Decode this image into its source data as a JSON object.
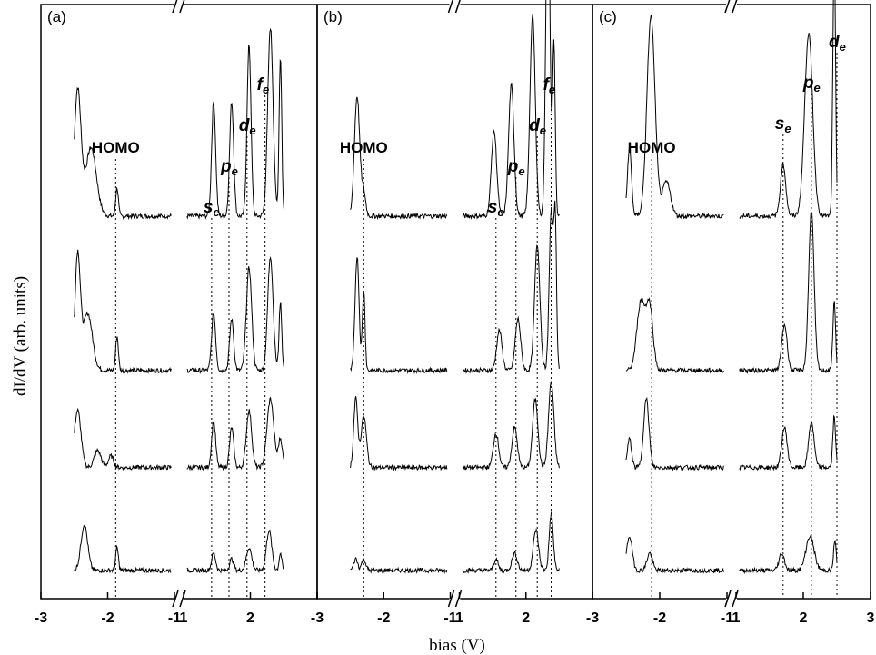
{
  "chart_data": {
    "type": "line",
    "ylabel": "dI/dV (arb. units)",
    "xlabel": "bias (V)",
    "x_axis": {
      "left_segment": {
        "range": [
          -3,
          -1
        ],
        "ticks": [
          -3,
          -2,
          -1
        ]
      },
      "right_segment": {
        "range": [
          1,
          3
        ],
        "ticks": [
          1,
          2,
          3
        ]
      },
      "broken_axis": true
    },
    "tick_labels": [
      "-3",
      "-2",
      "-1",
      "1",
      "2",
      "3"
    ],
    "panels": [
      {
        "label": "(a)",
        "homo_label": "HOMO",
        "homo_bias": -1.88,
        "levels": [
          {
            "name": "s",
            "sub": "e",
            "bias": 1.42
          },
          {
            "name": "p",
            "sub": "e",
            "bias": 1.68
          },
          {
            "name": "d",
            "sub": "e",
            "bias": 1.95
          },
          {
            "name": "f",
            "sub": "e",
            "bias": 2.22
          }
        ],
        "traces": [
          {
            "offset": 0.66,
            "neg_peaks": [
              [
                -2.45,
                0.22,
                0.05
              ],
              [
                -2.25,
                0.12,
                0.08
              ],
              [
                -1.86,
                0.05,
                0.02
              ]
            ],
            "pos_peaks": [
              [
                1.45,
                0.2,
                0.03
              ],
              [
                1.72,
                0.2,
                0.03
              ],
              [
                1.98,
                0.3,
                0.03
              ],
              [
                2.3,
                0.33,
                0.04
              ],
              [
                2.45,
                0.28,
                0.02
              ]
            ]
          },
          {
            "offset": 0.39,
            "neg_peaks": [
              [
                -2.45,
                0.2,
                0.04
              ],
              [
                -2.3,
                0.1,
                0.07
              ],
              [
                -1.86,
                0.06,
                0.02
              ]
            ],
            "pos_peaks": [
              [
                1.45,
                0.1,
                0.03
              ],
              [
                1.72,
                0.09,
                0.03
              ],
              [
                1.98,
                0.18,
                0.04
              ],
              [
                2.3,
                0.2,
                0.04
              ],
              [
                2.45,
                0.12,
                0.02
              ]
            ]
          },
          {
            "offset": 0.22,
            "neg_peaks": [
              [
                -2.45,
                0.1,
                0.05
              ],
              [
                -2.15,
                0.03,
                0.05
              ],
              [
                -1.95,
                0.02,
                0.04
              ]
            ],
            "pos_peaks": [
              [
                1.45,
                0.08,
                0.03
              ],
              [
                1.72,
                0.07,
                0.03
              ],
              [
                1.98,
                0.1,
                0.04
              ],
              [
                2.3,
                0.12,
                0.05
              ],
              [
                2.45,
                0.05,
                0.03
              ]
            ]
          },
          {
            "offset": 0.04,
            "neg_peaks": [
              [
                -2.35,
                0.08,
                0.05
              ],
              [
                -1.86,
                0.04,
                0.02
              ]
            ],
            "pos_peaks": [
              [
                1.45,
                0.03,
                0.03
              ],
              [
                1.72,
                0.02,
                0.03
              ],
              [
                1.98,
                0.04,
                0.04
              ],
              [
                2.28,
                0.07,
                0.04
              ],
              [
                2.45,
                0.03,
                0.02
              ]
            ]
          }
        ]
      },
      {
        "label": "(b)",
        "homo_label": "HOMO",
        "homo_bias": -2.3,
        "levels": [
          {
            "name": "s",
            "sub": "e",
            "bias": 1.55
          },
          {
            "name": "p",
            "sub": "e",
            "bias": 1.85
          },
          {
            "name": "d",
            "sub": "e",
            "bias": 2.17
          },
          {
            "name": "f",
            "sub": "e",
            "bias": 2.38
          }
        ],
        "traces": [
          {
            "offset": 0.66,
            "neg_peaks": [
              [
                -2.4,
                0.21,
                0.04
              ],
              [
                -2.3,
                0.04,
                0.03
              ]
            ],
            "pos_peaks": [
              [
                1.52,
                0.15,
                0.04
              ],
              [
                1.78,
                0.23,
                0.04
              ],
              [
                2.1,
                0.35,
                0.04
              ],
              [
                2.33,
                0.62,
                0.03
              ],
              [
                2.42,
                0.3,
                0.02
              ]
            ]
          },
          {
            "offset": 0.39,
            "neg_peaks": [
              [
                -2.4,
                0.2,
                0.03
              ],
              [
                -2.3,
                0.14,
                0.02
              ]
            ],
            "pos_peaks": [
              [
                1.6,
                0.07,
                0.04
              ],
              [
                1.88,
                0.09,
                0.04
              ],
              [
                2.17,
                0.22,
                0.04
              ],
              [
                2.38,
                0.28,
                0.03
              ],
              [
                2.44,
                0.25,
                0.02
              ]
            ]
          },
          {
            "offset": 0.22,
            "neg_peaks": [
              [
                -2.42,
                0.12,
                0.03
              ],
              [
                -2.3,
                0.09,
                0.04
              ]
            ],
            "pos_peaks": [
              [
                1.55,
                0.06,
                0.04
              ],
              [
                1.83,
                0.07,
                0.04
              ],
              [
                2.14,
                0.12,
                0.04
              ],
              [
                2.38,
                0.15,
                0.04
              ]
            ]
          },
          {
            "offset": 0.04,
            "neg_peaks": [
              [
                -2.42,
                0.02,
                0.03
              ],
              [
                -2.3,
                0.02,
                0.03
              ]
            ],
            "pos_peaks": [
              [
                1.55,
                0.02,
                0.03
              ],
              [
                1.83,
                0.03,
                0.04
              ],
              [
                2.15,
                0.07,
                0.04
              ],
              [
                2.38,
                0.1,
                0.03
              ]
            ]
          }
        ]
      },
      {
        "label": "(c)",
        "homo_label": "HOMO",
        "homo_bias": -2.12,
        "levels": [
          {
            "name": "s",
            "sub": "e",
            "bias": 1.7
          },
          {
            "name": "p",
            "sub": "e",
            "bias": 2.12
          },
          {
            "name": "d",
            "sub": "e",
            "bias": 2.5
          }
        ],
        "traces": [
          {
            "offset": 0.66,
            "neg_peaks": [
              [
                -2.45,
                0.12,
                0.03
              ],
              [
                -2.13,
                0.35,
                0.06
              ],
              [
                -1.9,
                0.06,
                0.06
              ]
            ],
            "pos_peaks": [
              [
                1.7,
                0.09,
                0.04
              ],
              [
                2.08,
                0.32,
                0.06
              ],
              [
                2.46,
                0.46,
                0.02
              ]
            ]
          },
          {
            "offset": 0.39,
            "neg_peaks": [
              [
                -2.28,
                0.12,
                0.06
              ],
              [
                -2.15,
                0.11,
                0.05
              ]
            ],
            "pos_peaks": [
              [
                1.72,
                0.08,
                0.04
              ],
              [
                2.12,
                0.28,
                0.04
              ],
              [
                2.46,
                0.12,
                0.02
              ]
            ]
          },
          {
            "offset": 0.22,
            "neg_peaks": [
              [
                -2.45,
                0.05,
                0.03
              ],
              [
                -2.2,
                0.12,
                0.04
              ]
            ],
            "pos_peaks": [
              [
                1.72,
                0.07,
                0.04
              ],
              [
                2.12,
                0.08,
                0.04
              ],
              [
                2.46,
                0.09,
                0.02
              ]
            ]
          },
          {
            "offset": 0.04,
            "neg_peaks": [
              [
                -2.45,
                0.06,
                0.04
              ],
              [
                -2.15,
                0.03,
                0.04
              ]
            ],
            "pos_peaks": [
              [
                1.68,
                0.03,
                0.04
              ],
              [
                2.1,
                0.06,
                0.06
              ],
              [
                2.47,
                0.05,
                0.02
              ]
            ]
          }
        ]
      }
    ]
  }
}
